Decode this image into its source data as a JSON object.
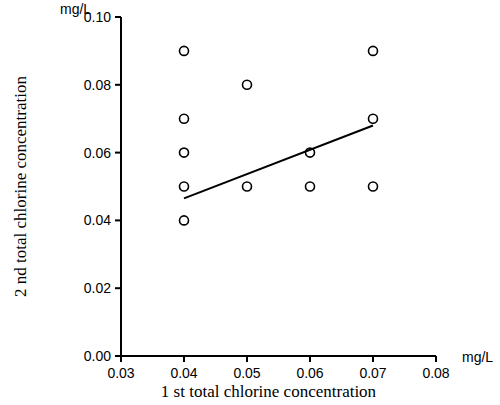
{
  "chart_data": {
    "type": "scatter",
    "x_label": "1 st total chlorine concentration",
    "y_label": "2 nd total chlorine concentration",
    "x_unit": "mg/L",
    "y_unit": "mg/L",
    "x": [
      0.04,
      0.04,
      0.04,
      0.04,
      0.04,
      0.05,
      0.05,
      0.06,
      0.06,
      0.07,
      0.07,
      0.07
    ],
    "values": [
      0.09,
      0.07,
      0.06,
      0.05,
      0.04,
      0.08,
      0.05,
      0.06,
      0.05,
      0.09,
      0.07,
      0.05
    ],
    "marker": "circle",
    "color": "#000000",
    "trend_line": {
      "x": [
        0.04,
        0.07
      ],
      "values": [
        0.0465,
        0.068
      ]
    },
    "xlim": [
      0.03,
      0.08
    ],
    "xticks": [
      0.03,
      0.04,
      0.05,
      0.06,
      0.07,
      0.08
    ],
    "ylim": [
      0,
      0.1
    ],
    "yticks": [
      {
        "value": 0,
        "label": "0.00"
      },
      0.02,
      0.04,
      0.06,
      0.08,
      {
        "value": 0.1,
        "label": "0.10"
      }
    ],
    "grid": false
  }
}
